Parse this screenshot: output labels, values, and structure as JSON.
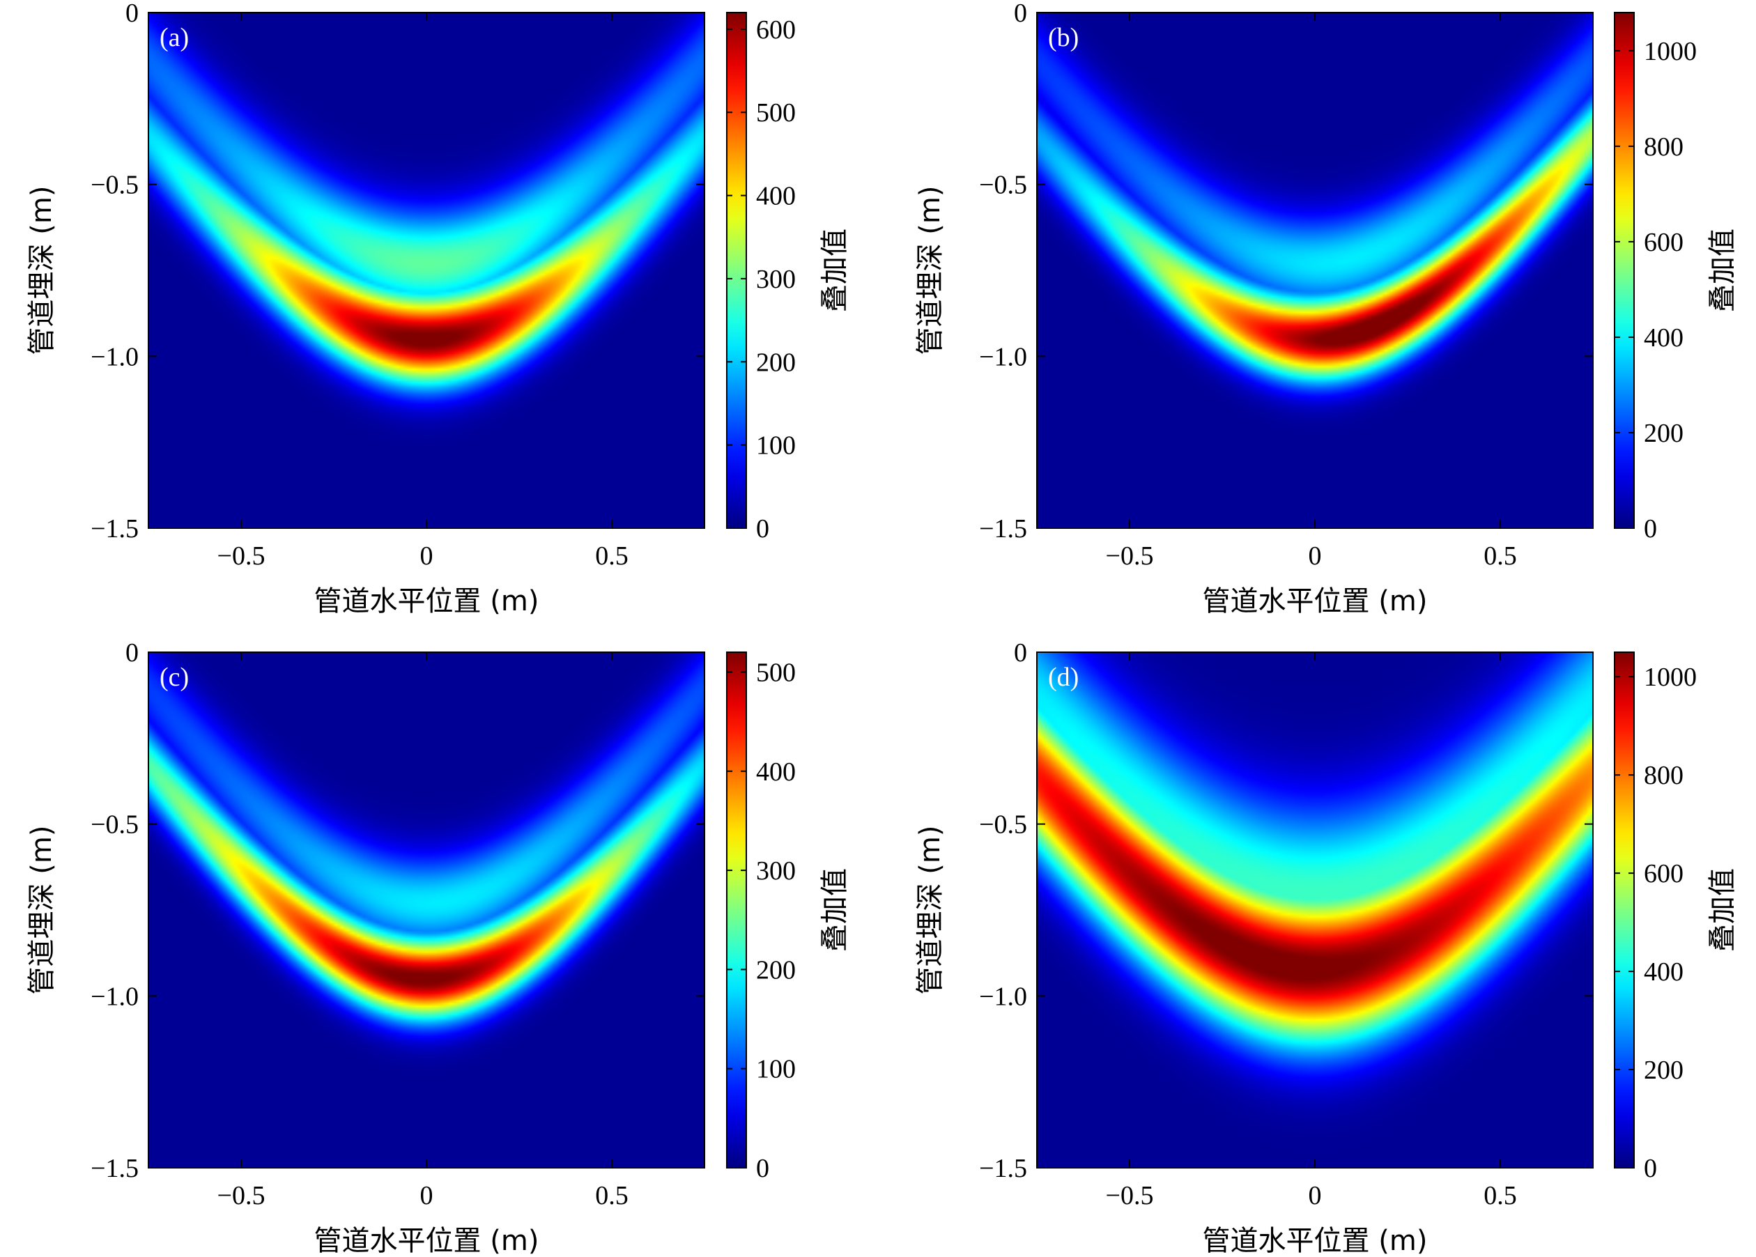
{
  "chart_data": [
    {
      "type": "heatmap",
      "panel_label": "(a)",
      "xlabel": "管道水平位置 (m)",
      "ylabel": "管道埋深 (m)",
      "colorbar_label": "叠加值",
      "xlim": [
        -0.75,
        0.75
      ],
      "ylim": [
        -1.5,
        0
      ],
      "xticks": [
        -0.5,
        0,
        0.5
      ],
      "xtick_labels": [
        "−0.5",
        "0",
        "0.5"
      ],
      "yticks": [
        0,
        -0.5,
        -1.0,
        -1.5
      ],
      "ytick_labels": [
        "0",
        "−0.5",
        "−1.0",
        "−1.5"
      ],
      "clim": [
        0,
        620
      ],
      "cticks": [
        0,
        100,
        200,
        300,
        400,
        500,
        600
      ],
      "colormap": "jet",
      "grid": false,
      "field": {
        "hyperbola_depth": 0.95,
        "hyperbola_width": 0.55,
        "band_sigma": 0.09,
        "peak_x": 0.0,
        "skew": 0.0,
        "spread": 0.35,
        "inner_ring_level": 0.6
      }
    },
    {
      "type": "heatmap",
      "panel_label": "(b)",
      "xlabel": "管道水平位置 (m)",
      "ylabel": "管道埋深 (m)",
      "colorbar_label": "叠加值",
      "xlim": [
        -0.75,
        0.75
      ],
      "ylim": [
        -1.5,
        0
      ],
      "xticks": [
        -0.5,
        0,
        0.5
      ],
      "xtick_labels": [
        "−0.5",
        "0",
        "0.5"
      ],
      "yticks": [
        0,
        -0.5,
        -1.0,
        -1.5
      ],
      "ytick_labels": [
        "0",
        "−0.5",
        "−1.0",
        "−1.5"
      ],
      "clim": [
        0,
        1080
      ],
      "cticks": [
        0,
        200,
        400,
        600,
        800,
        1000
      ],
      "colormap": "jet",
      "grid": false,
      "field": {
        "hyperbola_depth": 0.95,
        "hyperbola_width": 0.55,
        "band_sigma": 0.08,
        "peak_x": 0.1,
        "skew": 0.25,
        "spread": 0.4,
        "inner_ring_level": 0.45
      }
    },
    {
      "type": "heatmap",
      "panel_label": "(c)",
      "xlabel": "管道水平位置 (m)",
      "ylabel": "管道埋深 (m)",
      "colorbar_label": "叠加值",
      "xlim": [
        -0.75,
        0.75
      ],
      "ylim": [
        -1.5,
        0
      ],
      "xticks": [
        -0.5,
        0,
        0.5
      ],
      "xtick_labels": [
        "−0.5",
        "0",
        "0.5"
      ],
      "yticks": [
        0,
        -0.5,
        -1.0,
        -1.5
      ],
      "ytick_labels": [
        "0",
        "−0.5",
        "−1.0",
        "−1.5"
      ],
      "clim": [
        0,
        520
      ],
      "cticks": [
        0,
        100,
        200,
        300,
        400,
        500
      ],
      "colormap": "jet",
      "grid": false,
      "field": {
        "hyperbola_depth": 0.95,
        "hyperbola_width": 0.5,
        "band_sigma": 0.08,
        "peak_x": 0.05,
        "skew": -0.3,
        "spread": 0.4,
        "inner_ring_level": 0.45
      }
    },
    {
      "type": "heatmap",
      "panel_label": "(d)",
      "xlabel": "管道水平位置 (m)",
      "ylabel": "管道埋深 (m)",
      "colorbar_label": "叠加值",
      "xlim": [
        -0.75,
        0.75
      ],
      "ylim": [
        -1.5,
        0
      ],
      "xticks": [
        -0.5,
        0,
        0.5
      ],
      "xtick_labels": [
        "−0.5",
        "0",
        "0.5"
      ],
      "yticks": [
        0,
        -0.5,
        -1.0,
        -1.5
      ],
      "ytick_labels": [
        "0",
        "−0.5",
        "−1.0",
        "−1.5"
      ],
      "clim": [
        0,
        1050
      ],
      "cticks": [
        0,
        200,
        400,
        600,
        800,
        1000
      ],
      "colormap": "jet",
      "grid": false,
      "field": {
        "hyperbola_depth": 0.92,
        "hyperbola_width": 0.6,
        "band_sigma": 0.15,
        "peak_x": 0.0,
        "skew": -0.1,
        "spread": 0.9,
        "inner_ring_level": 0.55
      }
    }
  ]
}
